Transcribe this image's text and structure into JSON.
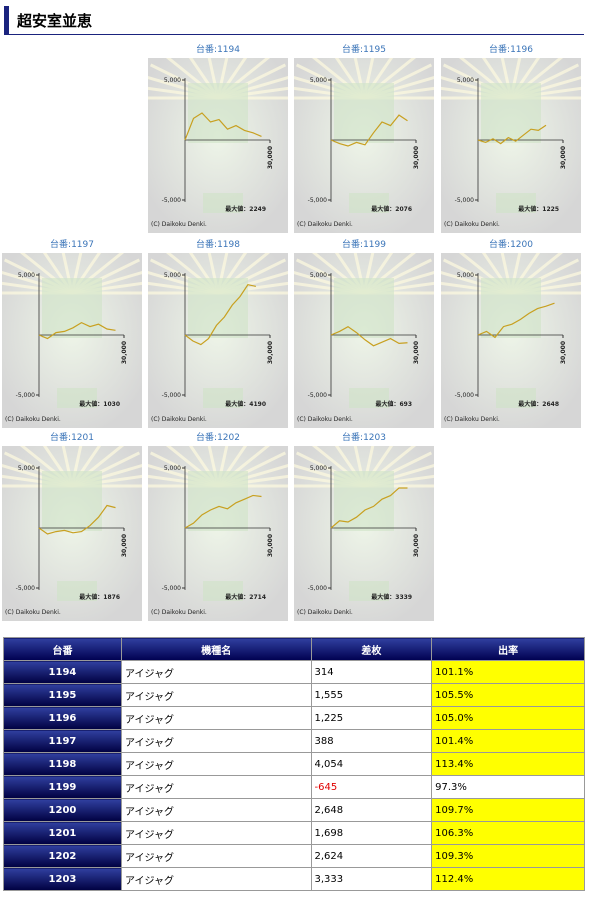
{
  "header": {
    "title": "超安室並恵"
  },
  "graph_axes": {
    "xlim": [
      0,
      33000
    ],
    "ylim": [
      -6500,
      6500
    ],
    "yticks": [
      {
        "value": 5000,
        "label": "5,000"
      },
      {
        "value": -5000,
        "label": "-5,000"
      }
    ],
    "xtick": {
      "value": 30000,
      "label": "30,000"
    },
    "copyright": "(C) Daikoku Denki."
  },
  "panels": [
    {
      "label": "台番:1194",
      "max": "最大値：2249",
      "x": [
        0,
        3000,
        6000,
        9000,
        12000,
        15000,
        18000,
        21000,
        24000,
        27000
      ],
      "values": [
        0,
        1800,
        2249,
        1500,
        1700,
        900,
        1200,
        800,
        600,
        300
      ]
    },
    {
      "label": "台番:1195",
      "max": "最大値：2076",
      "x": [
        0,
        3000,
        6000,
        9000,
        12000,
        15000,
        18000,
        21000,
        24000,
        27000
      ],
      "values": [
        0,
        -300,
        -500,
        -200,
        -400,
        600,
        1500,
        1200,
        2076,
        1600
      ]
    },
    {
      "label": "台番:1196",
      "max": "最大値：1225",
      "x": [
        0,
        2700,
        5300,
        8000,
        10700,
        13300,
        16000,
        18700,
        21300,
        24000
      ],
      "values": [
        0,
        -200,
        100,
        -300,
        200,
        -100,
        400,
        900,
        800,
        1225
      ]
    },
    {
      "label": "台番:1197",
      "max": "最大値：1030",
      "x": [
        0,
        3000,
        6000,
        9000,
        12000,
        15000,
        18000,
        21000,
        24000,
        27000
      ],
      "values": [
        0,
        -300,
        200,
        300,
        600,
        1030,
        700,
        900,
        500,
        388
      ]
    },
    {
      "label": "台番:1198",
      "max": "最大値：4190",
      "x": [
        0,
        2800,
        5600,
        8300,
        11100,
        13900,
        16700,
        19400,
        22200,
        25000
      ],
      "values": [
        0,
        -500,
        -800,
        -300,
        800,
        1500,
        2500,
        3200,
        4190,
        4054
      ]
    },
    {
      "label": "台番:1199",
      "max": "最大値：693",
      "x": [
        0,
        3000,
        6000,
        9000,
        12000,
        15000,
        18000,
        21000,
        24000,
        27000
      ],
      "values": [
        0,
        300,
        693,
        200,
        -400,
        -900,
        -600,
        -300,
        -700,
        -645
      ]
    },
    {
      "label": "台番:1200",
      "max": "最大値：2648",
      "x": [
        0,
        3000,
        6000,
        9000,
        12000,
        15000,
        18000,
        21000,
        24000,
        27000
      ],
      "values": [
        0,
        300,
        -200,
        700,
        900,
        1300,
        1800,
        2200,
        2400,
        2648
      ]
    },
    {
      "label": "台番:1201",
      "max": "最大値：1876",
      "x": [
        0,
        3000,
        6000,
        9000,
        12000,
        15000,
        18000,
        21000,
        24000,
        27000
      ],
      "values": [
        0,
        -500,
        -300,
        -200,
        -400,
        -300,
        200,
        900,
        1876,
        1698
      ]
    },
    {
      "label": "台番:1202",
      "max": "最大値：2714",
      "x": [
        0,
        3000,
        6000,
        9000,
        12000,
        15000,
        18000,
        21000,
        24000,
        27000
      ],
      "values": [
        0,
        400,
        1100,
        1500,
        1800,
        1600,
        2100,
        2400,
        2714,
        2624
      ]
    },
    {
      "label": "台番:1203",
      "max": "最大値：3339",
      "x": [
        0,
        3000,
        6000,
        9000,
        12000,
        15000,
        18000,
        21000,
        24000,
        27000
      ],
      "values": [
        0,
        600,
        500,
        900,
        1500,
        1800,
        2400,
        2700,
        3339,
        3333
      ]
    }
  ],
  "table": {
    "columns": [
      "台番",
      "機種名",
      "差枚",
      "出率"
    ],
    "rows": [
      [
        "1194",
        "アイジャグ",
        "314",
        "101.1%"
      ],
      [
        "1195",
        "アイジャグ",
        "1,555",
        "105.5%"
      ],
      [
        "1196",
        "アイジャグ",
        "1,225",
        "105.0%"
      ],
      [
        "1197",
        "アイジャグ",
        "388",
        "101.4%"
      ],
      [
        "1198",
        "アイジャグ",
        "4,054",
        "113.4%"
      ],
      [
        "1199",
        "アイジャグ",
        "-645",
        "97.3%"
      ],
      [
        "1200",
        "アイジャグ",
        "2,648",
        "109.7%"
      ],
      [
        "1201",
        "アイジャグ",
        "1,698",
        "106.3%"
      ],
      [
        "1202",
        "アイジャグ",
        "2,624",
        "109.3%"
      ],
      [
        "1203",
        "アイジャグ",
        "3,333",
        "112.4%"
      ]
    ]
  }
}
